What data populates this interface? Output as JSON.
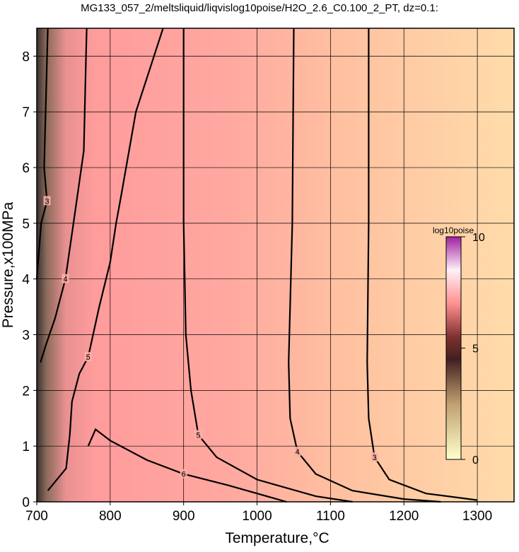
{
  "chart_data": {
    "type": "contour",
    "title": "MG133_057_2/meltsliquid/liqvislog10poise/H2O_2.6_C0.100_2_PT, dz=0.1:",
    "xlabel": "Temperature,°C",
    "ylabel": "Pressure,x100MPa",
    "xlim": [
      700,
      1350
    ],
    "ylim": [
      0,
      8.5
    ],
    "xticks": [
      700,
      800,
      900,
      1000,
      1100,
      1200,
      1300
    ],
    "yticks": [
      0,
      1,
      2,
      3,
      4,
      5,
      6,
      7,
      8
    ],
    "grid": true,
    "colorbar": {
      "label": "log10poise",
      "lim": [
        0,
        10
      ],
      "ticks": [
        0,
        5,
        10
      ]
    },
    "contours": [
      {
        "level": 3,
        "x": [
          1152,
          1152,
          1150,
          1152,
          1160,
          1180,
          1230,
          1300
        ],
        "y": [
          8.5,
          5,
          2.5,
          1.5,
          0.8,
          0.4,
          0.15,
          0.03
        ]
      },
      {
        "level": 4,
        "x": [
          1050,
          1048,
          1043,
          1045,
          1055,
          1080,
          1130,
          1200,
          1250
        ],
        "y": [
          8.5,
          5,
          2.5,
          1.5,
          0.9,
          0.5,
          0.2,
          0.05,
          0
        ]
      },
      {
        "level": 5,
        "x": [
          900,
          900,
          903,
          910,
          920,
          945,
          1000,
          1080,
          1130
        ],
        "y": [
          8.5,
          5,
          3,
          2,
          1.2,
          0.8,
          0.4,
          0.1,
          0
        ]
      },
      {
        "level": 5,
        "x": [
          872,
          835,
          815,
          808,
          800,
          785,
          770,
          758,
          748,
          745,
          740,
          715
        ],
        "y": [
          8.5,
          7,
          5.5,
          5,
          4.3,
          3.5,
          2.6,
          2.3,
          1.8,
          1.2,
          0.6,
          0.2
        ]
      },
      {
        "level": 4,
        "x": [
          768,
          764,
          750,
          739,
          725,
          712,
          705
        ],
        "y": [
          8.5,
          6.3,
          5,
          4,
          3.3,
          2.8,
          2.5
        ]
      },
      {
        "level": 6,
        "x": [
          770,
          780,
          800,
          850,
          900,
          960,
          1000,
          1040
        ],
        "y": [
          1,
          1.3,
          1.1,
          0.75,
          0.5,
          0.3,
          0.15,
          0
        ]
      },
      {
        "level": 3,
        "x": [
          715,
          712,
          710,
          714,
          706,
          700
        ],
        "y": [
          8.5,
          7,
          6,
          5.4,
          5,
          4
        ]
      }
    ]
  }
}
